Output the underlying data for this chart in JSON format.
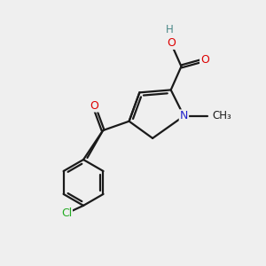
{
  "background_color": "#efefef",
  "bond_color": "#1a1a1a",
  "atom_colors": {
    "O": "#dd0000",
    "N": "#2222cc",
    "Cl": "#22aa22",
    "H": "#4a8888",
    "C": "#1a1a1a"
  },
  "bond_width": 1.6,
  "figsize": [
    3.0,
    3.0
  ],
  "dpi": 100
}
